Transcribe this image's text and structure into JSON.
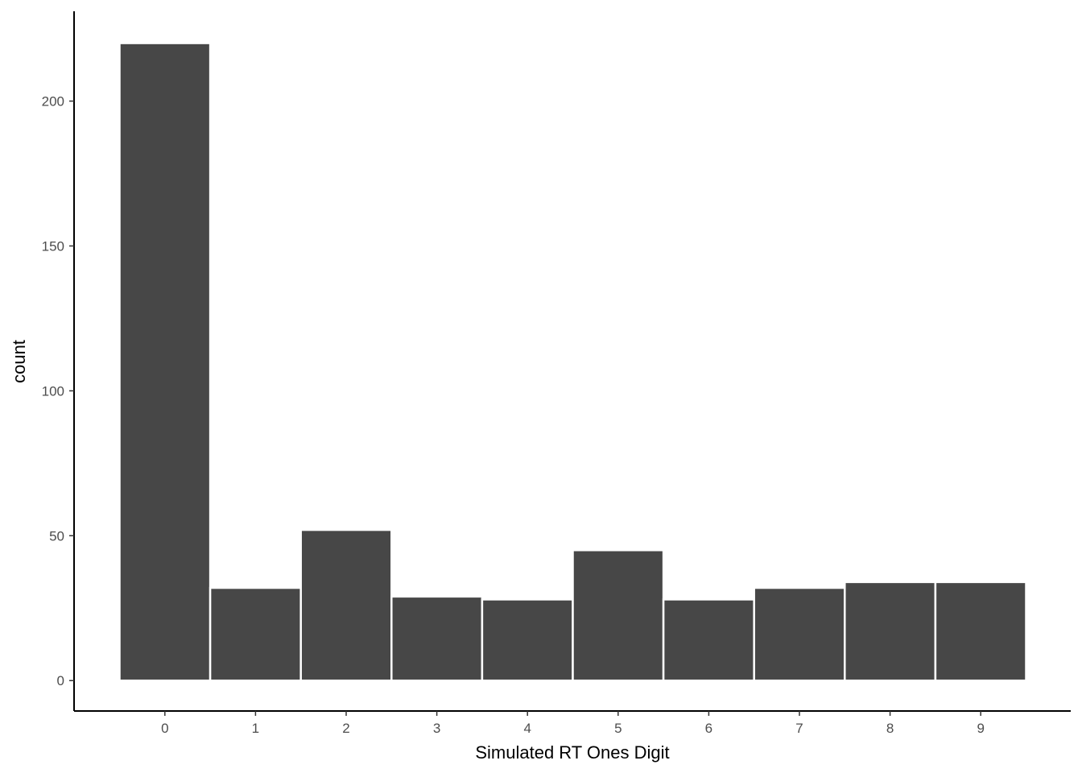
{
  "chart_data": {
    "type": "bar",
    "title": "",
    "xlabel": "Simulated RT Ones Digit",
    "ylabel": "count",
    "categories": [
      "0",
      "1",
      "2",
      "3",
      "4",
      "5",
      "6",
      "7",
      "8",
      "9"
    ],
    "values": [
      220,
      32,
      52,
      29,
      28,
      45,
      28,
      32,
      34,
      34
    ],
    "ylim": [
      -10.5,
      231
    ],
    "yticks": [
      0,
      50,
      100,
      150,
      200
    ],
    "grid": false,
    "legend": "none",
    "colors": {
      "bar_fill": "#474747",
      "bar_stroke": "#ffffff",
      "axis": "#000000",
      "tick_label": "#4d4d4d",
      "background": "#ffffff"
    }
  }
}
